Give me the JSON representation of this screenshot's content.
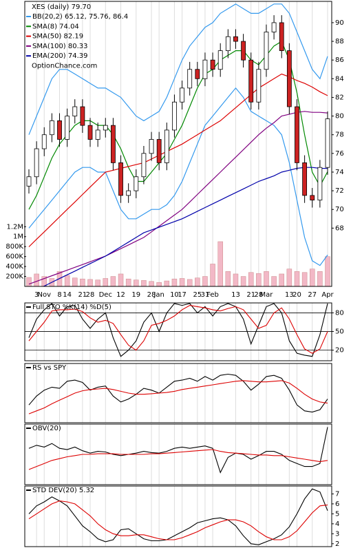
{
  "chart_data": [
    {
      "type": "candlestick",
      "title": "XES (daily) 79.70",
      "watermark": "OptionChance.com",
      "categories": [
        null,
        "3",
        "Nov",
        null,
        "8",
        "14",
        null,
        "21",
        "28",
        null,
        "Dec",
        null,
        "12",
        null,
        "19",
        null,
        "28",
        "Jan",
        null,
        "10",
        "17",
        null,
        "25",
        "31",
        "Feb",
        null,
        null,
        "13",
        null,
        "21",
        "28",
        "Mar",
        null,
        null,
        "13",
        "20",
        null,
        "27",
        null,
        "Apr"
      ],
      "open": [
        72.5,
        73.5,
        76.5,
        78,
        79.5,
        77.5,
        80,
        81,
        79,
        77.5,
        78.5,
        79,
        75,
        71.5,
        72,
        73.5,
        76,
        77.5,
        75,
        78.5,
        81.5,
        83,
        85,
        84,
        86,
        85,
        87,
        88.5,
        88,
        86,
        81.5,
        85,
        89,
        90,
        87,
        81,
        75,
        71.5,
        71,
        74.5
      ],
      "high": [
        74.3,
        77.3,
        78.8,
        80.3,
        80.3,
        80.8,
        81.8,
        81.8,
        79.8,
        79.3,
        79.8,
        79.8,
        75.8,
        72.8,
        74.3,
        76.8,
        78.3,
        78.3,
        79.3,
        82.3,
        83.8,
        85.8,
        85.8,
        86.8,
        86.8,
        87.8,
        89.3,
        89.3,
        88.8,
        86.8,
        85.8,
        89.8,
        90.8,
        90.8,
        87.8,
        81.8,
        75.8,
        72.3,
        75.3,
        80.5
      ],
      "low": [
        71.7,
        72.7,
        75.7,
        77.2,
        76.7,
        76.7,
        79.2,
        78.2,
        76.7,
        76.7,
        77.7,
        74.2,
        70.7,
        70.7,
        71.2,
        72.7,
        75.2,
        74.2,
        74.2,
        77.7,
        80.7,
        82.2,
        83.2,
        83.2,
        84.2,
        84.2,
        86.2,
        87.2,
        85.2,
        80.7,
        80.7,
        84.2,
        88.2,
        86.2,
        80.2,
        74.2,
        70.7,
        70.2,
        70.2,
        73.7
      ],
      "close": [
        73.5,
        76.5,
        78,
        79.5,
        77.5,
        80,
        81,
        79,
        77.5,
        78.5,
        79,
        75,
        71.5,
        72,
        73.5,
        76,
        77.5,
        75,
        78.5,
        81.5,
        83,
        85,
        84,
        86,
        85,
        87,
        88.5,
        88,
        86,
        81.5,
        85,
        89,
        90,
        87,
        81,
        75,
        71.5,
        71,
        74.5,
        79.7
      ],
      "up_color": "#ffffff",
      "down_color": "#cc2222",
      "ylim": [
        61.76,
        92.28
      ],
      "yticks": [
        68,
        70,
        72,
        74,
        76,
        78,
        80,
        82,
        84,
        86,
        88,
        90
      ],
      "overlays": [
        {
          "name": "BB(20,2) 65.12, 75.76, 86.4",
          "color": "#3399ee",
          "values": [
            78,
            80,
            82,
            84,
            85,
            85,
            84.5,
            84,
            83.5,
            83,
            83,
            82.5,
            82,
            81,
            80,
            79.5,
            80,
            80.5,
            82,
            84,
            86,
            87.5,
            88.5,
            89.5,
            90,
            91,
            91.5,
            92,
            91.5,
            91,
            91,
            91.5,
            92,
            92,
            91,
            89,
            87,
            85,
            84,
            86.4
          ]
        },
        {
          "color": "#3399ee",
          "values": [
            68,
            69,
            70,
            71,
            72,
            73,
            74,
            74.5,
            74.5,
            74,
            74,
            72,
            70,
            69,
            69,
            69.5,
            70,
            70,
            70.5,
            71.5,
            73,
            75,
            77,
            79,
            80,
            81,
            82,
            83,
            82,
            80.5,
            80,
            79.5,
            79,
            78,
            75,
            71,
            67,
            64.5,
            64,
            65.12
          ]
        },
        {
          "name": "SMA(8) 74.04",
          "color": "#008800",
          "values": [
            70,
            71.5,
            73.5,
            75.5,
            77,
            78,
            79,
            79.5,
            79.5,
            79,
            79,
            78,
            76.5,
            74.5,
            73,
            73,
            74,
            75,
            76,
            77.5,
            79,
            81,
            83,
            84.5,
            85,
            86,
            86.5,
            87,
            87,
            86,
            85.5,
            86.5,
            87.5,
            88,
            86,
            82.5,
            78,
            74,
            72.5,
            74.04
          ]
        },
        {
          "name": "SMA(50) 82.19",
          "color": "#dd0000",
          "values": [
            66,
            66.8,
            67.6,
            68.4,
            69.2,
            70,
            70.8,
            71.6,
            72.4,
            73.2,
            74,
            74.2,
            74.4,
            74.6,
            74.8,
            75,
            75.4,
            75.8,
            76.2,
            76.6,
            77,
            77.5,
            78,
            78.5,
            79,
            79.5,
            80.2,
            80.9,
            81.6,
            82.3,
            83,
            83.5,
            84,
            84.5,
            84.2,
            83.8,
            83.5,
            83.1,
            82.6,
            82.19
          ]
        },
        {
          "name": "SMA(100) 80.33",
          "color": "#800080",
          "values": [
            62,
            62.3,
            62.6,
            62.9,
            63.2,
            63.5,
            63.8,
            64.1,
            64.4,
            64.7,
            65,
            65.4,
            65.8,
            66.2,
            66.6,
            67,
            67.6,
            68.2,
            68.8,
            69.4,
            70,
            70.8,
            71.6,
            72.4,
            73.2,
            74,
            74.8,
            75.6,
            76.4,
            77.2,
            78,
            78.7,
            79.3,
            80,
            80.2,
            80.4,
            80.5,
            80.4,
            80.4,
            80.33
          ]
        },
        {
          "name": "EMA(200) 74.39",
          "color": "#0000aa",
          "values": [
            61,
            61.4,
            61.8,
            62.2,
            62.6,
            63,
            63.4,
            63.8,
            64.2,
            64.6,
            65,
            65.5,
            66,
            66.5,
            67,
            67.5,
            67.8,
            68.1,
            68.4,
            68.7,
            69,
            69.4,
            69.8,
            70.2,
            70.6,
            71,
            71.4,
            71.8,
            72.2,
            72.6,
            73,
            73.3,
            73.6,
            74,
            74.2,
            74.4,
            74.5,
            74.5,
            74.4,
            74.39
          ]
        }
      ],
      "volume": {
        "color": "#f2b8c6",
        "ylim": [
          0,
          5730000
        ],
        "yticks": [
          {
            "value": 200000,
            "label": "200K"
          },
          {
            "value": 400000,
            "label": "400K"
          },
          {
            "value": 600000,
            "label": "600K"
          },
          {
            "value": 800000,
            "label": "800K"
          },
          {
            "value": 1000000,
            "label": "1M"
          },
          {
            "value": 1200000,
            "label": "1.2M"
          }
        ],
        "values": [
          180000,
          250000,
          200000,
          160000,
          300000,
          220000,
          170000,
          150000,
          140000,
          130000,
          160000,
          200000,
          250000,
          150000,
          130000,
          120000,
          100000,
          80000,
          110000,
          150000,
          160000,
          140000,
          170000,
          200000,
          450000,
          900000,
          300000,
          250000,
          200000,
          280000,
          260000,
          300000,
          200000,
          250000,
          350000,
          300000,
          280000,
          350000,
          300000,
          600000
        ]
      }
    },
    {
      "type": "line",
      "title": "Full STO %K(14) %D(5)",
      "ylim": [
        3,
        96
      ],
      "yticks": [
        20,
        50,
        80
      ],
      "grid": true,
      "series": [
        {
          "color": "#000000",
          "values": [
            40,
            70,
            85,
            95,
            75,
            90,
            92,
            70,
            55,
            70,
            80,
            40,
            10,
            20,
            35,
            65,
            80,
            50,
            80,
            95,
            92,
            95,
            80,
            90,
            75,
            90,
            95,
            90,
            70,
            30,
            60,
            90,
            95,
            80,
            35,
            15,
            12,
            10,
            45,
            95
          ]
        },
        {
          "color": "#dd0000",
          "values": [
            35,
            50,
            65,
            83,
            85,
            85,
            86,
            82,
            72,
            65,
            68,
            63,
            45,
            28,
            20,
            35,
            60,
            63,
            68,
            75,
            85,
            92,
            90,
            88,
            85,
            83,
            87,
            90,
            85,
            70,
            55,
            60,
            80,
            88,
            70,
            45,
            22,
            15,
            22,
            50
          ]
        }
      ]
    },
    {
      "type": "line",
      "title": "RS vs SPY",
      "ylim": [
        0,
        100
      ],
      "grid": false,
      "series": [
        {
          "color": "#000000",
          "values": [
            30,
            45,
            55,
            60,
            58,
            70,
            72,
            68,
            55,
            60,
            62,
            45,
            35,
            40,
            48,
            58,
            55,
            50,
            60,
            70,
            72,
            75,
            70,
            78,
            72,
            80,
            82,
            80,
            70,
            55,
            65,
            78,
            80,
            75,
            55,
            30,
            20,
            18,
            22,
            40
          ]
        },
        {
          "color": "#dd0000",
          "values": [
            15,
            20,
            25,
            32,
            38,
            44,
            50,
            54,
            56,
            57,
            58,
            56,
            53,
            50,
            48,
            48,
            49,
            50,
            51,
            53,
            56,
            58,
            60,
            62,
            64,
            66,
            68,
            70,
            71,
            70,
            69,
            69,
            70,
            71,
            67,
            58,
            48,
            40,
            35,
            33
          ]
        }
      ]
    },
    {
      "type": "line",
      "title": "OBV(20)",
      "ylim": [
        0,
        100
      ],
      "grid": false,
      "series": [
        {
          "color": "#000000",
          "values": [
            60,
            65,
            62,
            68,
            60,
            58,
            62,
            56,
            52,
            55,
            54,
            50,
            48,
            50,
            52,
            55,
            53,
            52,
            55,
            60,
            62,
            60,
            62,
            64,
            60,
            20,
            45,
            52,
            50,
            42,
            48,
            55,
            55,
            50,
            40,
            35,
            30,
            30,
            35,
            95
          ]
        },
        {
          "color": "#dd0000",
          "values": [
            25,
            30,
            35,
            40,
            43,
            46,
            48,
            50,
            50,
            51,
            51,
            51,
            50,
            50,
            50,
            50,
            51,
            51,
            52,
            53,
            54,
            55,
            56,
            57,
            58,
            55,
            53,
            52,
            51,
            50,
            49,
            49,
            48,
            48,
            46,
            44,
            42,
            40,
            38,
            40
          ]
        }
      ]
    },
    {
      "type": "line",
      "title": "STD DEV(20) 5.32",
      "ylim": [
        1.71,
        7.79
      ],
      "yticks": [
        2,
        3,
        4,
        5,
        6,
        7
      ],
      "grid": false,
      "series": [
        {
          "color": "#000000",
          "values": [
            5,
            5.8,
            6.2,
            6.7,
            6.3,
            5.8,
            4.8,
            3.8,
            3.2,
            2.5,
            2.2,
            2.4,
            3.4,
            3.5,
            3,
            2.5,
            2.3,
            2.3,
            2.4,
            2.8,
            3.2,
            3.6,
            4.1,
            4.3,
            4.5,
            4.6,
            4.4,
            3.8,
            2.8,
            2,
            1.9,
            2.2,
            2.5,
            2.9,
            3.7,
            5,
            6.5,
            7.5,
            7.2,
            5.32
          ]
        },
        {
          "color": "#dd0000",
          "values": [
            4.5,
            5,
            5.5,
            6,
            6.3,
            6.2,
            6,
            5.4,
            4.8,
            4,
            3.4,
            3,
            2.8,
            2.8,
            2.9,
            2.9,
            2.7,
            2.5,
            2.4,
            2.4,
            2.6,
            2.9,
            3.2,
            3.6,
            3.9,
            4.2,
            4.4,
            4.4,
            4.2,
            3.8,
            3.2,
            2.7,
            2.4,
            2.4,
            2.7,
            3.3,
            4.2,
            5.1,
            5.8,
            5.9
          ]
        }
      ]
    }
  ]
}
